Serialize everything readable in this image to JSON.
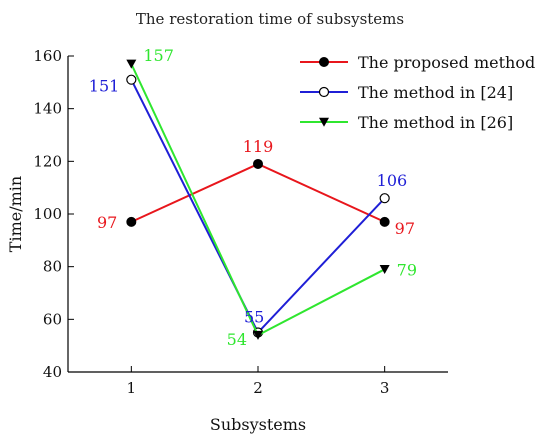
{
  "chart_data": {
    "type": "line",
    "title": "The restoration time of subsystems",
    "xlabel": "Subsystems",
    "ylabel": "Time/min",
    "x": [
      1,
      2,
      3
    ],
    "xticks": [
      "1",
      "2",
      "3"
    ],
    "xlim": [
      0.5,
      3.5
    ],
    "ylim": [
      40,
      160
    ],
    "yticks": [
      "40",
      "60",
      "80",
      "100",
      "120",
      "140",
      "160"
    ],
    "grid": false,
    "legend_position": "top-right",
    "series": [
      {
        "name": "The proposed method",
        "values": [
          97,
          119,
          97
        ],
        "labels": [
          "97",
          "119",
          "97"
        ],
        "color": "#e8161c",
        "marker": "filled-circle",
        "marker_color": "#000000"
      },
      {
        "name": "The method in [24]",
        "values": [
          151,
          55,
          106
        ],
        "labels": [
          "151",
          "55",
          "106"
        ],
        "color": "#1f1fd6",
        "marker": "open-circle",
        "marker_color": "#000000"
      },
      {
        "name": "The method in [26]",
        "values": [
          157,
          54,
          79
        ],
        "labels": [
          "157",
          "54",
          "79"
        ],
        "color": "#2fe62f",
        "marker": "filled-triangle-down",
        "marker_color": "#000000"
      }
    ]
  }
}
